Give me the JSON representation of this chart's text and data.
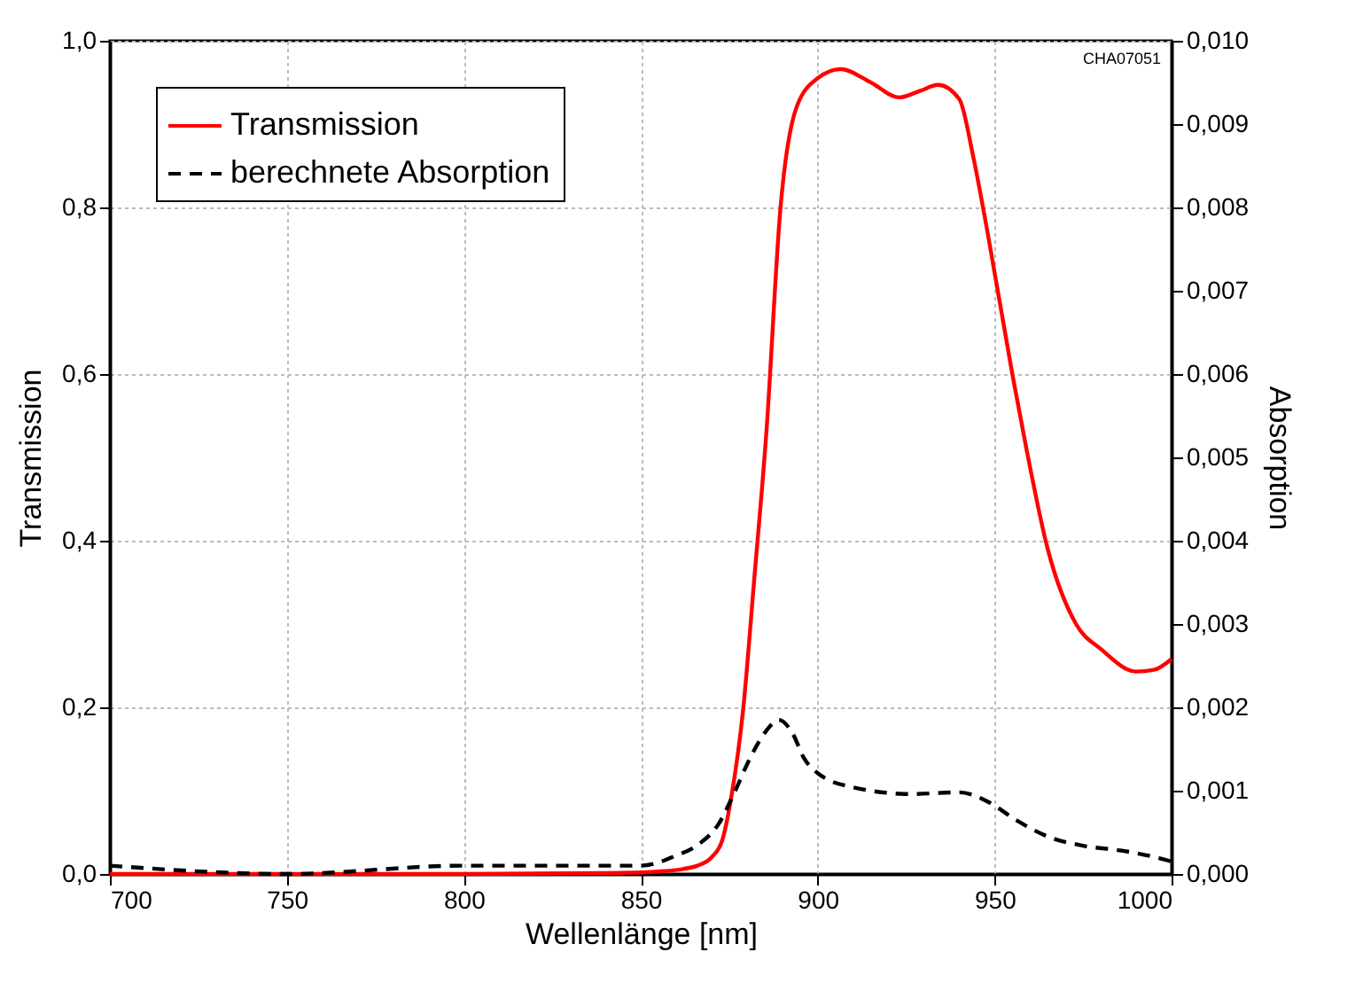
{
  "chart_data": {
    "type": "line",
    "xlabel": "Wellenlänge [nm]",
    "ylabel": "Transmission",
    "y2label": "Absorption",
    "annotations": [
      "CHA07051"
    ],
    "xlim": [
      700,
      1000
    ],
    "xticks": [
      700,
      750,
      800,
      850,
      900,
      950,
      1000
    ],
    "ylim": [
      0,
      1
    ],
    "yticks": [
      {
        "value": 0,
        "label": "0,0"
      },
      {
        "value": 0.2,
        "label": "0,2"
      },
      {
        "value": 0.4,
        "label": "0,4"
      },
      {
        "value": 0.6,
        "label": "0,6"
      },
      {
        "value": 0.8,
        "label": "0,8"
      },
      {
        "value": 1,
        "label": "1,0"
      }
    ],
    "y2lim": [
      0,
      0.01
    ],
    "y2ticks": [
      {
        "value": 0,
        "label": "0,000"
      },
      {
        "value": 0.001,
        "label": "0,001"
      },
      {
        "value": 0.002,
        "label": "0,002"
      },
      {
        "value": 0.003,
        "label": "0,003"
      },
      {
        "value": 0.004,
        "label": "0,004"
      },
      {
        "value": 0.005,
        "label": "0,005"
      },
      {
        "value": 0.006,
        "label": "0,006"
      },
      {
        "value": 0.007,
        "label": "0,007"
      },
      {
        "value": 0.008,
        "label": "0,008"
      },
      {
        "value": 0.009,
        "label": "0,009"
      },
      {
        "value": 0.01,
        "label": "0,010"
      }
    ],
    "grid": true,
    "legend": "top left",
    "series": [
      {
        "name": "Transmission",
        "color": "#ff0000",
        "line_style": "solid",
        "x": [
          700,
          750,
          800,
          840,
          855,
          862,
          866,
          870,
          873,
          875.5,
          879,
          882,
          885.5,
          889.5,
          894,
          900,
          906.5,
          915,
          923,
          929,
          934,
          940,
          944,
          948,
          955,
          959,
          965,
          973,
          980,
          990,
          995,
          1000
        ],
        "values": [
          0.0,
          0.0,
          0.0,
          0.001,
          0.003,
          0.006,
          0.01,
          0.02,
          0.04,
          0.09,
          0.2,
          0.35,
          0.53,
          0.8,
          0.92,
          0.955,
          0.966,
          0.95,
          0.932,
          0.94,
          0.947,
          0.93,
          0.86,
          0.77,
          0.6,
          0.51,
          0.39,
          0.3,
          0.27,
          0.243,
          0.245,
          0.258
        ]
      },
      {
        "name": "berechnete Absorption",
        "color": "#000000",
        "line_style": "dashed",
        "axis": "y2",
        "x": [
          700,
          750,
          800,
          830,
          850,
          860,
          866.5,
          872,
          876.5,
          881,
          885.5,
          889,
          893,
          896,
          900,
          910,
          926.5,
          940,
          948,
          956,
          965,
          975,
          986,
          996.5,
          1000
        ],
        "values": [
          0.0001,
          0.0,
          0.0001,
          0.0001,
          0.0001,
          0.00022,
          0.00036,
          0.0006,
          0.00098,
          0.0014,
          0.00172,
          0.00185,
          0.00168,
          0.0014,
          0.00121,
          0.00104,
          0.00096,
          0.00098,
          0.00087,
          0.00065,
          0.00045,
          0.00034,
          0.00028,
          0.00019,
          0.00015
        ]
      }
    ]
  }
}
